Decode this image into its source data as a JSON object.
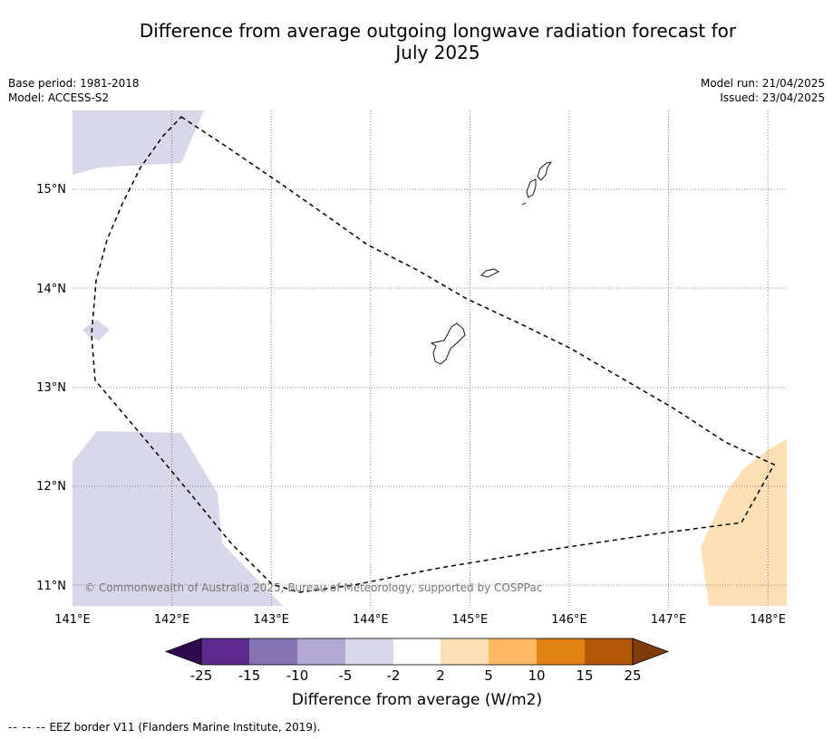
{
  "title_line1": "Difference from average outgoing longwave radiation forecast for",
  "title_line2": "July 2025",
  "base_period": "Base period: 1981-2018",
  "model": "Model: ACCESS-S2",
  "model_run": "Model run: 21/04/2025",
  "issued": "Issued: 23/04/2025",
  "copyright": "© Commonwealth of Australia 2025, Bureau of Meteorology, supported by COSPPac",
  "lon_ticks": [
    "141°E",
    "142°E",
    "143°E",
    "144°E",
    "145°E",
    "146°E",
    "147°E",
    "148°E"
  ],
  "lat_ticks": [
    "15°N",
    "14°N",
    "13°N",
    "12°N",
    "11°N"
  ],
  "colorbar": {
    "label": "Difference from average (W/m2)",
    "ticks": [
      "-25",
      "-15",
      "-10",
      "-5",
      "-2",
      "2",
      "5",
      "10",
      "15",
      "25"
    ],
    "colors": [
      "#2d0a4e",
      "#5b2a8c",
      "#8474b2",
      "#b1a8d3",
      "#d8d8ea",
      "#ffffff",
      "#fde0b6",
      "#fdb863",
      "#e08214",
      "#b35806",
      "#7f3b08"
    ]
  },
  "legend_footnote": {
    "symbol": "--  --  --",
    "text": "EEZ border V11 (Flanders Marine Institute, 2019)."
  },
  "map": {
    "lon_range": [
      141.0,
      148.2
    ],
    "lat_range": [
      10.8,
      15.8
    ],
    "grid": true,
    "anomaly_regions": [
      {
        "class": "-5 to -2",
        "color": "#d8d8ea",
        "location": "northwest corner"
      },
      {
        "class": "-5 to -2",
        "color": "#d8d8ea",
        "location": "small patch near 141.2°E 13.6°N"
      },
      {
        "class": "-5 to -2",
        "color": "#d8d8ea",
        "location": "southwest corner"
      },
      {
        "class": "2 to 5",
        "color": "#fde0b6",
        "location": "southeast corner"
      }
    ],
    "features": [
      "Guam",
      "Rota",
      "Tinian",
      "Saipan",
      "EEZ border"
    ]
  }
}
